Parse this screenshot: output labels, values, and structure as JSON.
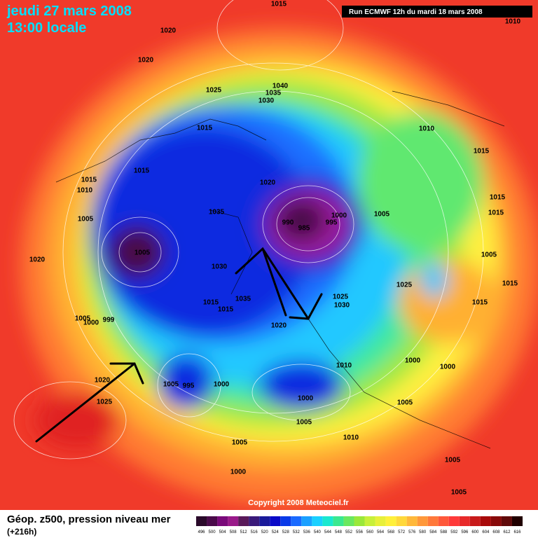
{
  "header": {
    "date": "jeudi 27 mars 2008",
    "time": "13:00 locale",
    "run": "Run ECMWF 12h du mardi 18 mars 2008"
  },
  "map": {
    "isobar_labels": [
      "1015",
      "1020",
      "1020",
      "1010",
      "1040",
      "1035",
      "1030",
      "1025",
      "1015",
      "1010",
      "1015",
      "1015",
      "1015",
      "1010",
      "1005",
      "1020",
      "1035",
      "990",
      "985",
      "995",
      "1000",
      "1005",
      "1020",
      "1030",
      "1035",
      "1015",
      "1015",
      "1005",
      "1000",
      "999",
      "1020",
      "1025",
      "1030",
      "1005",
      "995",
      "1000",
      "1020",
      "1025",
      "1000",
      "1010",
      "1005",
      "1000",
      "1000",
      "1005",
      "1010",
      "1005",
      "1000",
      "1005",
      "1005",
      "1025",
      "1015",
      "1015",
      "1005",
      "1015",
      "1015",
      "1005"
    ],
    "copyright": "Copyright 2008 Meteociel.fr"
  },
  "footer": {
    "legend_title": "Géop. z500, pression niveau mer",
    "lead_time": "(+216h)",
    "colorbar": {
      "labels": [
        496,
        500,
        504,
        508,
        512,
        516,
        520,
        524,
        528,
        532,
        536,
        540,
        544,
        548,
        552,
        556,
        560,
        564,
        568,
        572,
        576,
        580,
        584,
        588,
        592,
        596,
        600,
        604,
        608,
        612,
        616
      ],
      "colors": [
        "#2a0a2a",
        "#4a0a4a",
        "#7a0a7a",
        "#9a1a8a",
        "#5a1a5a",
        "#3a1a7a",
        "#1a1a9a",
        "#0a0ac8",
        "#0a3ae8",
        "#1a6aff",
        "#1aa0ff",
        "#1ad0ff",
        "#1ae8d0",
        "#3ae890",
        "#6ae860",
        "#9ae83a",
        "#c8f03a",
        "#e8f03a",
        "#fff03a",
        "#ffd83a",
        "#ffb83a",
        "#ff983a",
        "#ff783a",
        "#ff583a",
        "#ff3a3a",
        "#e82a2a",
        "#c81a1a",
        "#a80a0a",
        "#880a0a",
        "#600a0a",
        "#200000"
      ]
    }
  }
}
